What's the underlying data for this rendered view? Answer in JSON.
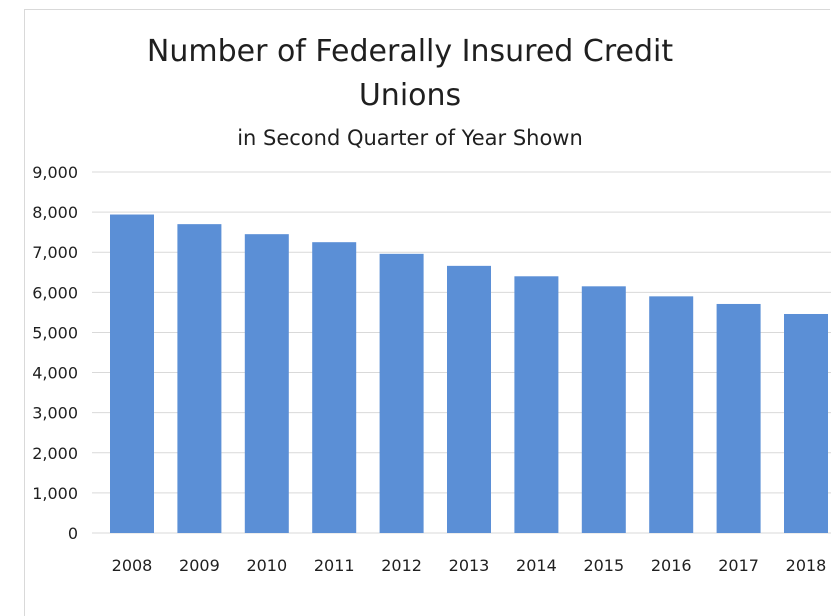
{
  "chart_data": {
    "type": "bar",
    "title_line1": "Number of Federally Insured Credit",
    "title_line2": "Unions",
    "subtitle": "in Second Quarter of Year Shown",
    "xlabel": "",
    "ylabel": "",
    "categories": [
      "2008",
      "2009",
      "2010",
      "2011",
      "2012",
      "2013",
      "2014",
      "2015",
      "2016",
      "2017",
      "2018"
    ],
    "values": [
      7940,
      7700,
      7450,
      7250,
      6960,
      6660,
      6400,
      6150,
      5900,
      5710,
      5460
    ],
    "ylim": [
      0,
      9000
    ],
    "yticks": [
      0,
      1000,
      2000,
      3000,
      4000,
      5000,
      6000,
      7000,
      8000,
      9000
    ],
    "ytick_labels": [
      "0",
      "1,000",
      "2,000",
      "3,000",
      "4,000",
      "5,000",
      "6,000",
      "7,000",
      "8,000",
      "9,000"
    ],
    "grid": true,
    "legend": "none",
    "bar_color": "#5b8fd6",
    "grid_color": "#d9d9d9"
  }
}
